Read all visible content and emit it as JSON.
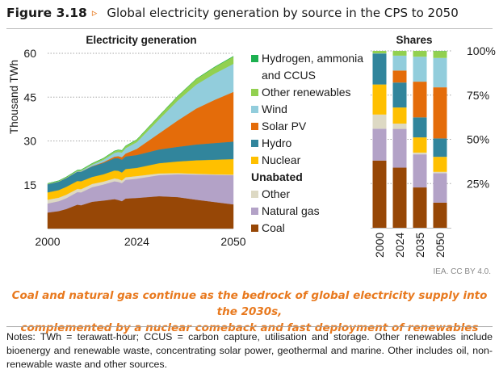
{
  "figure": {
    "number": "Figure 3.18",
    "arrow_icon": "▹",
    "title": "Global electricity generation by source in the CPS to 2050"
  },
  "legend": {
    "items": [
      {
        "label": "Hydrogen, ammonia",
        "label2": "and CCUS",
        "color": "#1db050"
      },
      {
        "label": "Other renewables",
        "color": "#92d050"
      },
      {
        "label": "Wind",
        "color": "#92cddc"
      },
      {
        "label": "Solar PV",
        "color": "#e46c0a"
      },
      {
        "label": "Hydro",
        "color": "#31859c"
      },
      {
        "label": "Nuclear",
        "color": "#ffc000"
      }
    ],
    "unabated_heading": "Unabated",
    "unabated_items": [
      {
        "label": "Other",
        "color": "#ddd9c4"
      },
      {
        "label": "Natural gas",
        "color": "#b3a2c7"
      },
      {
        "label": "Coal",
        "color": "#974706"
      }
    ]
  },
  "credit": "IEA. CC BY 4.0.",
  "caption": {
    "line1": "Coal and natural gas continue as the bedrock of global electricity supply into the 2030s,",
    "line2": "complemented by a nuclear comeback and fast deployment of renewables"
  },
  "notes": "Notes: TWh = terawatt-hour; CCUS = carbon capture, utilisation and storage. Other renewables include bioenergy and renewable waste, concentrating solar power, geothermal and marine. Other includes oil, non-renewable waste and other sources.",
  "chart_data": [
    {
      "type": "area",
      "title": "Electricity generation",
      "xlabel": "",
      "ylabel": "Thousand TWh",
      "ylim": [
        0,
        60
      ],
      "yticks": [
        15,
        30,
        45,
        60
      ],
      "xticks": [
        2000,
        2024,
        2050
      ],
      "xlim": [
        2000,
        2050
      ],
      "grid": "horizontal dotted",
      "x": [
        2000,
        2003,
        2005,
        2008,
        2009,
        2012,
        2015,
        2018,
        2019,
        2020,
        2021,
        2024,
        2030,
        2035,
        2040,
        2045,
        2050
      ],
      "series": [
        {
          "name": "Coal",
          "color": "#974706",
          "values": [
            5.5,
            6.0,
            6.7,
            8.2,
            8.0,
            9.2,
            9.6,
            10.1,
            9.8,
            9.4,
            10.3,
            10.5,
            11.1,
            10.8,
            9.9,
            9.1,
            8.3
          ]
        },
        {
          "name": "Natural gas",
          "color": "#b3a2c7",
          "values": [
            3.1,
            3.4,
            3.7,
            4.3,
            4.4,
            5.0,
            5.5,
            6.1,
            6.2,
            6.2,
            6.4,
            6.6,
            7.2,
            7.8,
            8.6,
            9.3,
            10.0
          ]
        },
        {
          "name": "Other",
          "color": "#ddd9c4",
          "values": [
            1.3,
            1.2,
            1.2,
            1.1,
            1.1,
            1.1,
            1.0,
            1.0,
            1.0,
            0.9,
            0.9,
            0.9,
            0.6,
            0.4,
            0.3,
            0.2,
            0.2
          ]
        },
        {
          "name": "Nuclear",
          "color": "#ffc000",
          "values": [
            2.5,
            2.6,
            2.7,
            2.7,
            2.7,
            2.4,
            2.5,
            2.7,
            2.8,
            2.7,
            2.8,
            2.8,
            3.5,
            4.0,
            4.6,
            5.0,
            5.3
          ]
        },
        {
          "name": "Hydro",
          "color": "#31859c",
          "values": [
            2.8,
            2.9,
            3.0,
            3.2,
            3.3,
            3.6,
            3.9,
            4.2,
            4.3,
            4.4,
            4.3,
            4.4,
            4.7,
            5.0,
            5.4,
            5.7,
            6.0
          ]
        },
        {
          "name": "Solar PV",
          "color": "#e46c0a",
          "values": [
            0.0,
            0.0,
            0.0,
            0.0,
            0.0,
            0.1,
            0.25,
            0.55,
            0.7,
            0.85,
            1.0,
            2.1,
            5.5,
            9.0,
            12.3,
            14.8,
            17.0
          ]
        },
        {
          "name": "Wind",
          "color": "#92cddc",
          "values": [
            0.03,
            0.06,
            0.1,
            0.2,
            0.28,
            0.5,
            0.8,
            1.27,
            1.42,
            1.6,
            1.85,
            2.3,
            4.8,
            6.8,
            8.2,
            9.0,
            9.6
          ]
        },
        {
          "name": "Other renewables",
          "color": "#92d050",
          "values": [
            0.2,
            0.22,
            0.25,
            0.3,
            0.32,
            0.42,
            0.52,
            0.65,
            0.7,
            0.72,
            0.75,
            0.85,
            1.2,
            1.5,
            1.9,
            2.2,
            2.5
          ]
        },
        {
          "name": "Hydrogen, ammonia and CCUS",
          "color": "#1db050",
          "values": [
            0,
            0,
            0,
            0,
            0,
            0,
            0,
            0,
            0,
            0,
            0,
            0,
            0,
            0.02,
            0.05,
            0.08,
            0.1
          ]
        }
      ]
    },
    {
      "type": "bar",
      "stacked": true,
      "title": "Shares",
      "ylim": [
        0,
        100
      ],
      "yticks": [
        "25%",
        "50%",
        "75%",
        "100%"
      ],
      "categories": [
        "2000",
        "2024",
        "2035",
        "2050"
      ],
      "series": [
        {
          "name": "Coal",
          "color": "#974706",
          "values": [
            38.0,
            34.0,
            22.8,
            14.2
          ]
        },
        {
          "name": "Natural gas",
          "color": "#b3a2c7",
          "values": [
            18.0,
            21.9,
            18.7,
            16.6
          ]
        },
        {
          "name": "Other",
          "color": "#ddd9c4",
          "values": [
            8.0,
            3.0,
            1.0,
            0.8
          ]
        },
        {
          "name": "Nuclear",
          "color": "#ffc000",
          "values": [
            17.0,
            9.1,
            8.6,
            8.5
          ]
        },
        {
          "name": "Hydro",
          "color": "#31859c",
          "values": [
            17.5,
            14.1,
            11.3,
            10.4
          ]
        },
        {
          "name": "Solar PV",
          "color": "#e46c0a",
          "values": [
            0.0,
            6.8,
            20.2,
            28.9
          ]
        },
        {
          "name": "Wind",
          "color": "#92cddc",
          "values": [
            0.1,
            8.4,
            14.1,
            16.6
          ]
        },
        {
          "name": "Other renewables",
          "color": "#92d050",
          "values": [
            1.4,
            2.7,
            3.3,
            3.9
          ]
        },
        {
          "name": "Hydrogen, ammonia and CCUS",
          "color": "#1db050",
          "values": [
            0,
            0,
            0,
            0.1
          ]
        }
      ]
    }
  ]
}
